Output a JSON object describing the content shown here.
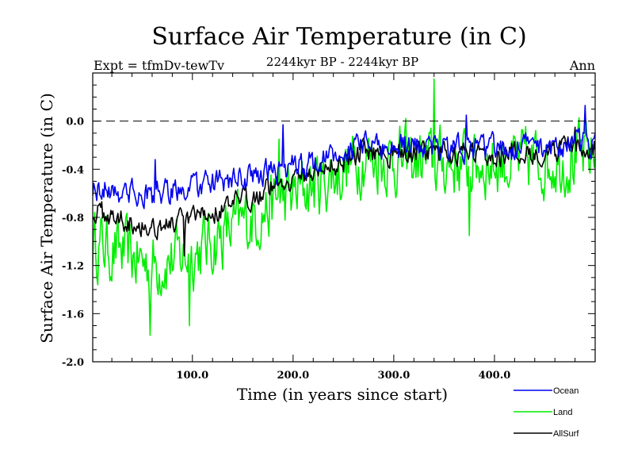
{
  "chart_data": {
    "type": "line",
    "title": "Surface Air Temperature (in C)",
    "subtitle": "2244kyr BP - 2244kyr BP",
    "left_label": "Expt = tfmDv-tewTv",
    "right_label": "Ann",
    "xlabel": "Time (in years since start)",
    "ylabel": "Surface Air Temperature (in C)",
    "xlim": [
      1,
      500
    ],
    "ylim": [
      -2.0,
      0.4
    ],
    "x_ticks": [
      100,
      200,
      300,
      400
    ],
    "x_tick_labels": [
      "100.0",
      "200.0",
      "300.0",
      "400.0"
    ],
    "y_ticks": [
      -2.0,
      -1.6,
      -1.2,
      -0.8,
      -0.4,
      0.0
    ],
    "y_tick_labels": [
      "-2.0",
      "-1.6",
      "-1.2",
      "-0.8",
      "-0.4",
      "0.0"
    ],
    "reference_line": 0.0,
    "legend_position": "bottom-right",
    "series": [
      {
        "name": "Land",
        "color": "#00ee00",
        "keypoints": [
          [
            1,
            -1.0
          ],
          [
            60,
            -1.2
          ],
          [
            100,
            -1.1
          ],
          [
            140,
            -0.9
          ],
          [
            190,
            -0.65
          ],
          [
            230,
            -0.5
          ],
          [
            270,
            -0.3
          ],
          [
            340,
            -0.35
          ],
          [
            420,
            -0.35
          ],
          [
            500,
            -0.3
          ]
        ],
        "noise": 0.24,
        "extremes": [
          [
            58,
            -1.78
          ],
          [
            97,
            -1.7
          ],
          [
            186,
            -0.15
          ],
          [
            340,
            0.35
          ],
          [
            375,
            -0.95
          ],
          [
            437,
            -0.2
          ]
        ]
      },
      {
        "name": "AllSurf",
        "color": "#000000",
        "keypoints": [
          [
            1,
            -0.75
          ],
          [
            60,
            -0.88
          ],
          [
            100,
            -0.82
          ],
          [
            140,
            -0.7
          ],
          [
            190,
            -0.5
          ],
          [
            230,
            -0.4
          ],
          [
            270,
            -0.25
          ],
          [
            340,
            -0.27
          ],
          [
            420,
            -0.27
          ],
          [
            500,
            -0.22
          ]
        ],
        "noise": 0.08,
        "extremes": [
          [
            92,
            -1.12
          ],
          [
            480,
            -0.05
          ]
        ]
      },
      {
        "name": "Ocean",
        "color": "#0000ee",
        "keypoints": [
          [
            1,
            -0.55
          ],
          [
            60,
            -0.62
          ],
          [
            100,
            -0.55
          ],
          [
            140,
            -0.5
          ],
          [
            190,
            -0.4
          ],
          [
            230,
            -0.32
          ],
          [
            270,
            -0.2
          ],
          [
            340,
            -0.22
          ],
          [
            420,
            -0.22
          ],
          [
            500,
            -0.18
          ]
        ],
        "noise": 0.09,
        "extremes": [
          [
            63,
            -0.32
          ],
          [
            190,
            -0.03
          ],
          [
            372,
            0.05
          ],
          [
            490,
            0.13
          ]
        ]
      }
    ]
  }
}
